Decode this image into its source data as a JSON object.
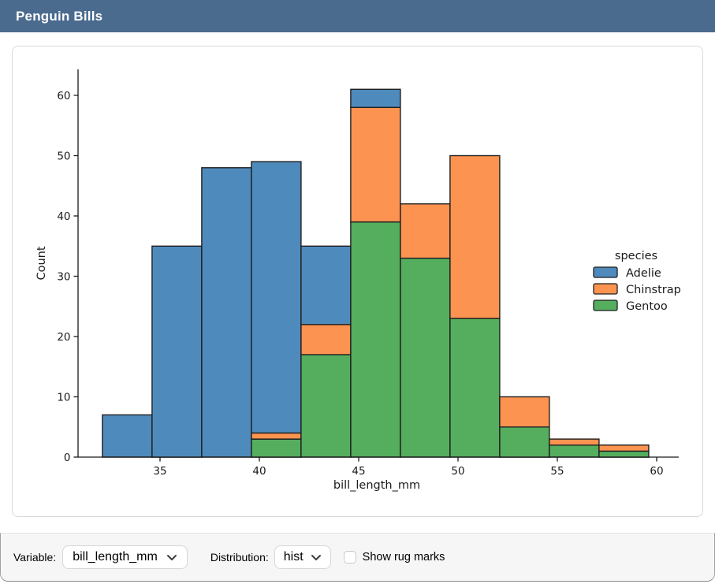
{
  "titlebar": {
    "title": "Penguin Bills",
    "bg_color": "#4a6b8e"
  },
  "chart_data": {
    "type": "bar",
    "subtype": "stacked_histogram",
    "title": "",
    "xlabel": "bill_length_mm",
    "ylabel": "Count",
    "grid": false,
    "bin_edges": [
      32.1,
      34.6,
      37.1,
      39.6,
      42.1,
      44.6,
      47.1,
      49.6,
      52.1,
      54.6,
      57.1,
      59.6
    ],
    "x_ticks": [
      35,
      40,
      45,
      50,
      55,
      60
    ],
    "y_ticks": [
      0,
      10,
      20,
      30,
      40,
      50,
      60
    ],
    "xlim": [
      30.8,
      61.1
    ],
    "ylim": [
      0,
      64
    ],
    "bar_edge_color": "#1f1f1f",
    "axis_color": "#1a1a1a",
    "stack_order_bottom_to_top": [
      "Gentoo",
      "Chinstrap",
      "Adelie"
    ],
    "series": [
      {
        "name": "Gentoo",
        "color": "#55ae5e",
        "values": [
          0,
          0,
          0,
          3,
          17,
          39,
          33,
          23,
          5,
          2,
          1
        ]
      },
      {
        "name": "Chinstrap",
        "color": "#fc9351",
        "values": [
          0,
          0,
          0,
          1,
          5,
          19,
          9,
          27,
          5,
          1,
          1
        ]
      },
      {
        "name": "Adelie",
        "color": "#4f8abc",
        "values": [
          7,
          35,
          48,
          45,
          13,
          3,
          0,
          0,
          0,
          0,
          0
        ]
      }
    ],
    "bin_totals": [
      7,
      35,
      48,
      49,
      35,
      61,
      42,
      50,
      10,
      3,
      2
    ],
    "legend": {
      "title": "species",
      "position": "right",
      "entries": [
        {
          "label": "Adelie",
          "color": "#4f8abc"
        },
        {
          "label": "Chinstrap",
          "color": "#fc9351"
        },
        {
          "label": "Gentoo",
          "color": "#55ae5e"
        }
      ]
    }
  },
  "footer": {
    "variable_label": "Variable:",
    "variable_value": "bill_length_mm",
    "distribution_label": "Distribution:",
    "distribution_value": "hist",
    "rug_label": "Show rug marks",
    "rug_checked": false
  }
}
